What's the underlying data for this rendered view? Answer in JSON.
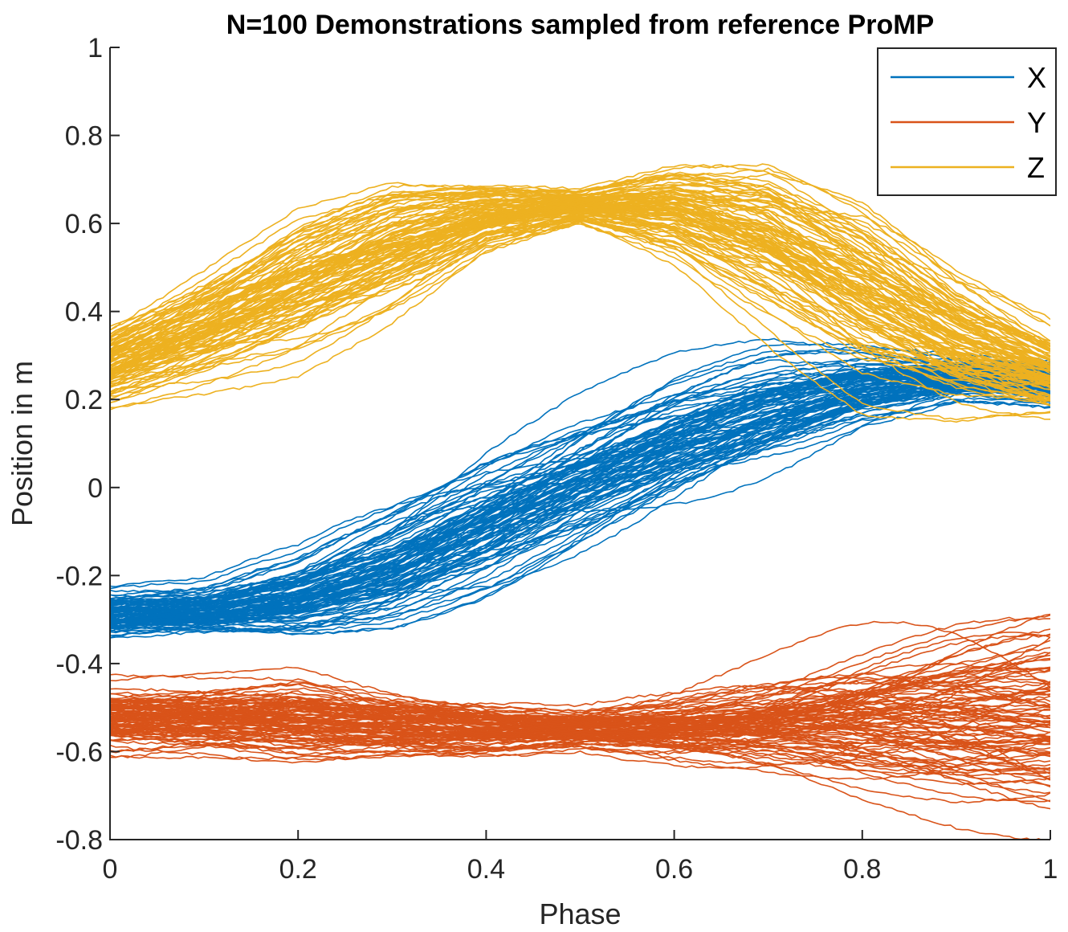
{
  "chart_data": {
    "type": "line",
    "title": "N=100 Demonstrations sampled from reference ProMP",
    "xlabel": "Phase",
    "ylabel": "Position in m",
    "xlim": [
      0,
      1
    ],
    "ylim": [
      -0.8,
      1
    ],
    "x_ticks": [
      "0",
      "0.2",
      "0.4",
      "0.6",
      "0.8",
      "1"
    ],
    "y_ticks": [
      "-0.8",
      "-0.6",
      "-0.4",
      "-0.2",
      "0",
      "0.2",
      "0.4",
      "0.6",
      "0.8",
      "1"
    ],
    "grid": false,
    "legend_position": "top-right",
    "n_demonstrations": 100,
    "x": [
      0,
      0.1,
      0.2,
      0.3,
      0.4,
      0.5,
      0.6,
      0.7,
      0.8,
      0.9,
      1.0
    ],
    "series": [
      {
        "name": "X",
        "color": "#0072BD",
        "mean": [
          -0.29,
          -0.28,
          -0.25,
          -0.18,
          -0.08,
          0.02,
          0.11,
          0.18,
          0.23,
          0.25,
          0.24
        ],
        "spread": [
          0.04,
          0.04,
          0.07,
          0.11,
          0.14,
          0.14,
          0.13,
          0.11,
          0.07,
          0.04,
          0.04
        ]
      },
      {
        "name": "Y",
        "color": "#D95319",
        "mean": [
          -0.53,
          -0.53,
          -0.53,
          -0.54,
          -0.55,
          -0.55,
          -0.55,
          -0.54,
          -0.53,
          -0.52,
          -0.51
        ],
        "spread": [
          0.06,
          0.06,
          0.07,
          0.05,
          0.04,
          0.03,
          0.05,
          0.08,
          0.12,
          0.15,
          0.17
        ]
      },
      {
        "name": "Z",
        "color": "#EDB120",
        "mean": [
          0.28,
          0.37,
          0.47,
          0.56,
          0.62,
          0.64,
          0.63,
          0.56,
          0.44,
          0.33,
          0.26
        ],
        "spread": [
          0.08,
          0.11,
          0.14,
          0.12,
          0.06,
          0.03,
          0.08,
          0.14,
          0.16,
          0.12,
          0.08
        ]
      }
    ]
  }
}
